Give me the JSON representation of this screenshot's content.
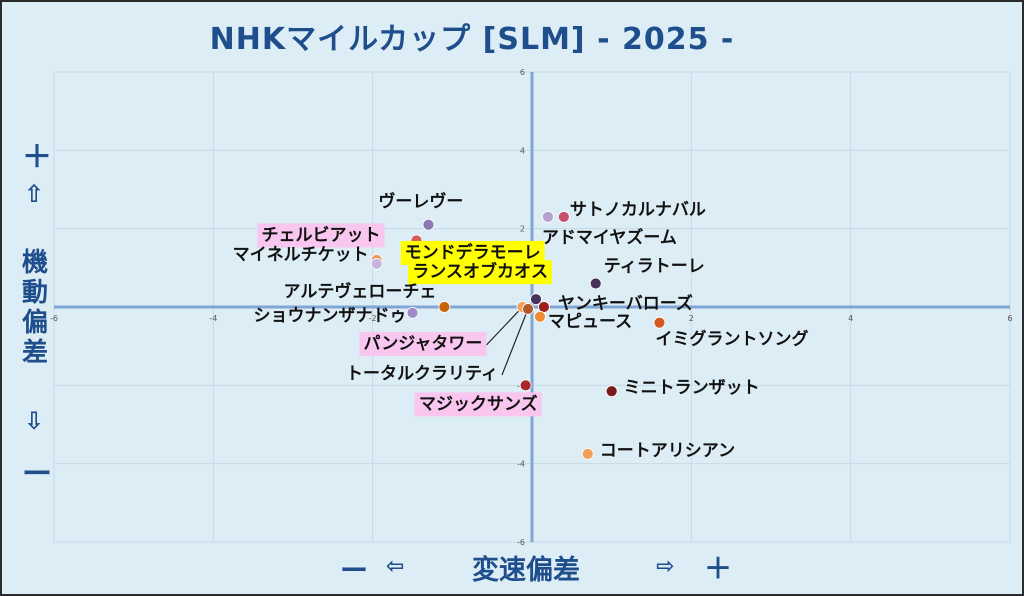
{
  "title": "NHKマイルカップ [SLM]  - 2025 -",
  "y_axis": {
    "plus": "＋",
    "arrow_up": "⇧",
    "label": "機動偏差",
    "arrow_down": "⇩",
    "minus": "ー"
  },
  "x_axis": {
    "minus": "ー",
    "arrow_left": "⇦",
    "label": "変速偏差",
    "arrow_right": "⇨",
    "plus": "＋"
  },
  "colors": {
    "background": "#dcedf5",
    "axis": "#7fa6d4",
    "grid": "#c6d9e8",
    "highlight_pink": "#f9c6f0",
    "highlight_yellow": "#ffff00"
  },
  "chart_data": {
    "type": "scatter",
    "title": "NHKマイルカップ [SLM]  - 2025 -",
    "xlabel": "変速偏差",
    "ylabel": "機動偏差",
    "xlim": [
      -6,
      6
    ],
    "ylim": [
      -6,
      6
    ],
    "xticks": [
      -6,
      -4,
      -2,
      2,
      4,
      6
    ],
    "yticks": [
      6,
      4,
      2,
      -2,
      -4,
      -6
    ],
    "grid": true,
    "points": [
      {
        "name": "ヴーレヴー",
        "x": -1.3,
        "y": 2.1,
        "color": "#8c78b4",
        "highlight": "",
        "label_pos": "up"
      },
      {
        "name": "サトノカルナバル",
        "x": 0.4,
        "y": 2.3,
        "color": "#c8506e",
        "highlight": "",
        "label_pos": "right"
      },
      {
        "name": "アドマイヤズーム",
        "x": 0.2,
        "y": 2.3,
        "color": "#b4a0d2",
        "highlight": "",
        "label_pos": "right-below"
      },
      {
        "name": "チェルビアット",
        "x": -1.45,
        "y": 1.7,
        "color": "#d75a5a",
        "highlight": "pink",
        "label_pos": "left"
      },
      {
        "name": "マイネルチケット",
        "x": -1.95,
        "y": 1.2,
        "color": "#f0965a",
        "highlight": "",
        "label_pos": "left"
      },
      {
        "name": "モンドデラモーレ",
        "x": -1.95,
        "y": 1.1,
        "color": "#c8b4dc",
        "highlight": "yellow",
        "label_pos": "right"
      },
      {
        "name": "ティラトーレ",
        "x": 0.8,
        "y": 0.6,
        "color": "#46325a",
        "highlight": "",
        "label_pos": "right"
      },
      {
        "name": "ランスオブカオス",
        "x": 0.05,
        "y": 0.2,
        "color": "#46325a",
        "highlight": "yellow",
        "label_pos": "left"
      },
      {
        "name": "アルテヴェローチェ",
        "x": -1.1,
        "y": 0.0,
        "color": "#c8640a",
        "highlight": "",
        "label_pos": "left"
      },
      {
        "name": "ヤンキーバローズ",
        "x": 0.15,
        "y": 0.0,
        "color": "#a01e1e",
        "highlight": "",
        "label_pos": "right"
      },
      {
        "name": "ショウナンザナドゥ",
        "x": -1.5,
        "y": -0.15,
        "color": "#a08cc8",
        "highlight": "",
        "label_pos": "left"
      },
      {
        "name": "マピュース",
        "x": 0.1,
        "y": -0.25,
        "color": "#f08c32",
        "highlight": "",
        "label_pos": "right"
      },
      {
        "name": "イミグラントソング",
        "x": 1.6,
        "y": -0.4,
        "color": "#d25a1e",
        "highlight": "",
        "label_pos": "right-below"
      },
      {
        "name": "パンジャタワー",
        "x": -0.12,
        "y": 0.0,
        "color": "#f0a05a",
        "highlight": "pink",
        "label_pos": "leader"
      },
      {
        "name": "トータルクラリティ",
        "x": -0.05,
        "y": -0.05,
        "color": "#b45a28",
        "highlight": "",
        "label_pos": "leader"
      },
      {
        "name": "マジックサンズ",
        "x": -0.08,
        "y": -2.0,
        "color": "#aa2828",
        "highlight": "pink",
        "label_pos": "below-left"
      },
      {
        "name": "ミニトランザット",
        "x": 1.0,
        "y": -2.15,
        "color": "#7a1a1a",
        "highlight": "",
        "label_pos": "right"
      },
      {
        "name": "コートアリシアン",
        "x": 0.7,
        "y": -3.75,
        "color": "#f0a05a",
        "highlight": "",
        "label_pos": "right"
      }
    ]
  }
}
